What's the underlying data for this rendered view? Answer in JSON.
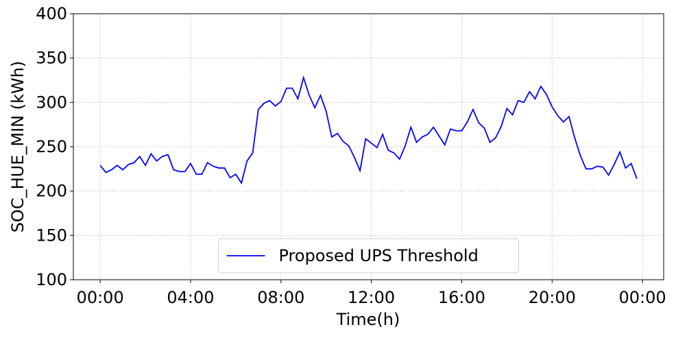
{
  "chart_data": {
    "type": "line",
    "xlabel": "Time(h)",
    "ylabel": "SOC_HUE_MIN (kWh)",
    "x": [
      0,
      0.25,
      0.5,
      0.75,
      1,
      1.25,
      1.5,
      1.75,
      2,
      2.25,
      2.5,
      2.75,
      3,
      3.25,
      3.5,
      3.75,
      4,
      4.25,
      4.5,
      4.75,
      5,
      5.25,
      5.5,
      5.75,
      6,
      6.25,
      6.5,
      6.75,
      7,
      7.25,
      7.5,
      7.75,
      8,
      8.25,
      8.5,
      8.75,
      9,
      9.25,
      9.5,
      9.75,
      10,
      10.25,
      10.5,
      10.75,
      11,
      11.25,
      11.5,
      11.75,
      12,
      12.25,
      12.5,
      12.75,
      13,
      13.25,
      13.5,
      13.75,
      14,
      14.25,
      14.5,
      14.75,
      15,
      15.25,
      15.5,
      15.75,
      16,
      16.25,
      16.5,
      16.75,
      17,
      17.25,
      17.5,
      17.75,
      18,
      18.25,
      18.5,
      18.75,
      19,
      19.25,
      19.5,
      19.75,
      20,
      20.25,
      20.5,
      20.75,
      21,
      21.25,
      21.5,
      21.75,
      22,
      22.25,
      22.5,
      22.75,
      23,
      23.25,
      23.5,
      23.75
    ],
    "series": [
      {
        "name": "Proposed UPS Threshold",
        "color": "#0000ff",
        "values": [
          229,
          221,
          224,
          229,
          224,
          230,
          232,
          239,
          229,
          242,
          234,
          239,
          241,
          224,
          222,
          222,
          231,
          219,
          219,
          232,
          228,
          226,
          226,
          215,
          219,
          209,
          234,
          243,
          292,
          299,
          302,
          296,
          301,
          316,
          316,
          304,
          328,
          308,
          294,
          308,
          290,
          261,
          265,
          256,
          251,
          238,
          223,
          259,
          254,
          249,
          264,
          246,
          243,
          236,
          251,
          272,
          255,
          261,
          264,
          272,
          262,
          252,
          270,
          268,
          268,
          278,
          292,
          277,
          271,
          255,
          260,
          273,
          293,
          286,
          302,
          300,
          312,
          304,
          318,
          309,
          295,
          285,
          278,
          284,
          260,
          240,
          225,
          225,
          228,
          227,
          218,
          230,
          244,
          226,
          231,
          214
        ]
      }
    ],
    "xlim": [
      -1.1875,
      24.9375
    ],
    "xticks": [
      {
        "value": 0,
        "label": "00:00"
      },
      {
        "value": 4,
        "label": "04:00"
      },
      {
        "value": 8,
        "label": "08:00"
      },
      {
        "value": 12,
        "label": "12:00"
      },
      {
        "value": 16,
        "label": "16:00"
      },
      {
        "value": 20,
        "label": "20:00"
      },
      {
        "value": 24,
        "label": "00:00"
      }
    ],
    "ylim": [
      100,
      400
    ],
    "yticks": [
      100,
      150,
      200,
      250,
      300,
      350,
      400
    ],
    "grid": true,
    "legend": "lower center"
  }
}
